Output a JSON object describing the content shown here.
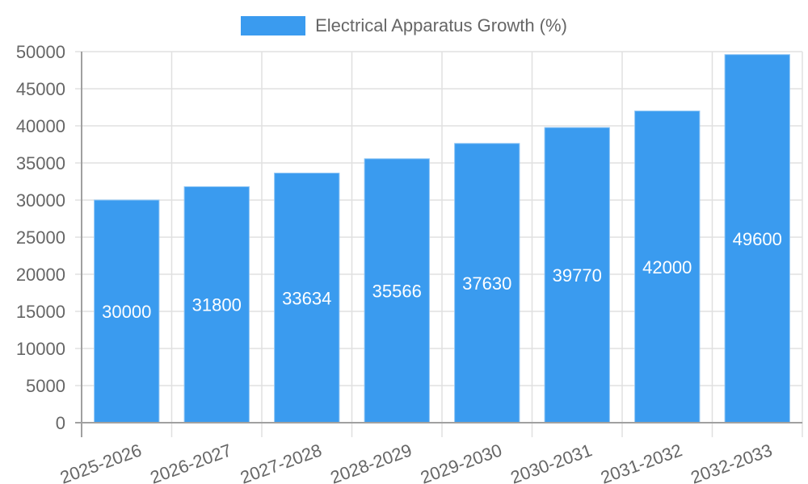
{
  "legend": {
    "label": "Electrical Apparatus Growth (%)",
    "color": "#3a9bef"
  },
  "colors": {
    "bar": "#3a9bef",
    "bar_border": "#8ec5f5",
    "grid": "#e0e0e0",
    "axis": "#a0a0a0",
    "tick_text": "#666666",
    "label_text": "#ffffff"
  },
  "chart_data": {
    "type": "bar",
    "title": "",
    "xlabel": "",
    "ylabel": "",
    "categories": [
      "2025-2026",
      "2026-2027",
      "2027-2028",
      "2028-2029",
      "2029-2030",
      "2030-2031",
      "2031-2032",
      "2032-2033"
    ],
    "series": [
      {
        "name": "Electrical Apparatus Growth (%)",
        "values": [
          30000,
          31800,
          33634,
          35566,
          37630,
          39770,
          42000,
          49600
        ]
      }
    ],
    "ylim": [
      0,
      50000
    ],
    "yticks": [
      0,
      5000,
      10000,
      15000,
      20000,
      25000,
      30000,
      35000,
      40000,
      45000,
      50000
    ],
    "grid": true,
    "legend_position": "top",
    "data_labels": true
  }
}
